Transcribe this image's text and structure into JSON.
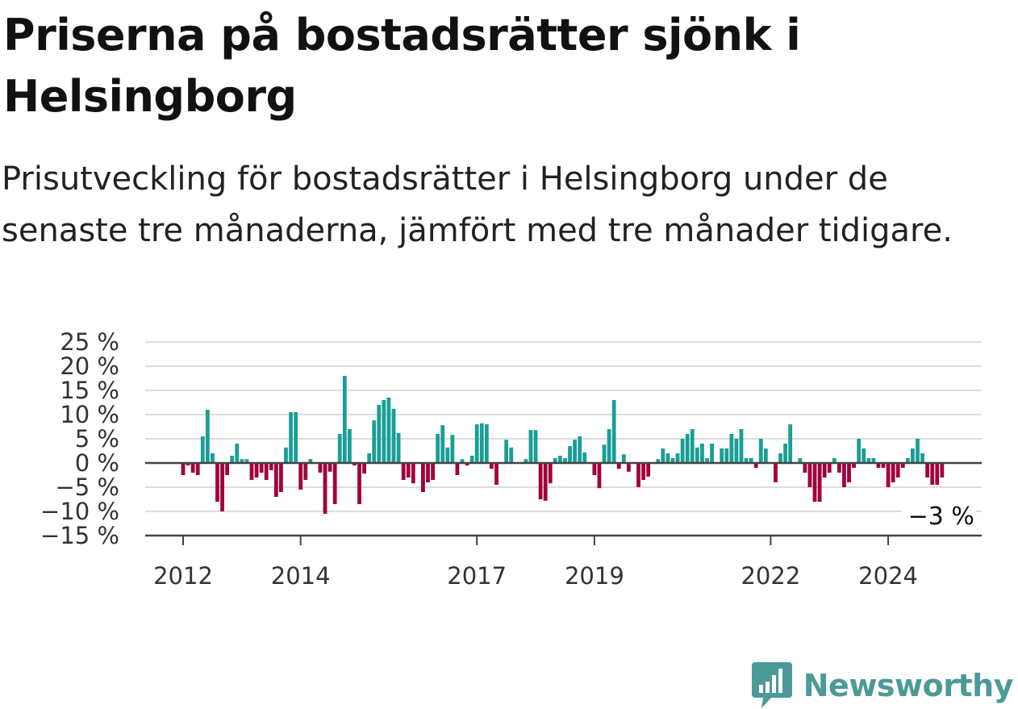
{
  "title": "Priserna på bostadsrätter sjönk i Helsingborg",
  "subtitle": "Prisutveckling för bostadsrätter i Helsingborg under de senaste tre månaderna, jämfört med tre månader tidigare.",
  "brand": {
    "name": "Newsworthy",
    "icon": "newsworthy-logo-icon"
  },
  "colors": {
    "positive": "#1a9e96",
    "negative": "#a1003d",
    "grid": "#dddddd",
    "axis": "#444444"
  },
  "chart_data": {
    "type": "bar",
    "title": "Priserna på bostadsrätter sjönk i Helsingborg",
    "ylabel": "",
    "xlabel": "",
    "unit": "%",
    "ylim": [
      -15,
      25
    ],
    "y_ticks": [
      25,
      20,
      15,
      10,
      5,
      0,
      -5,
      -10,
      -15
    ],
    "y_tick_labels": [
      "25 %",
      "20 %",
      "15 %",
      "10 %",
      "5 %",
      "0 %",
      "−5 %",
      "−10 %",
      "−15 %"
    ],
    "x_ticks": [
      "2012",
      "2014",
      "2017",
      "2019",
      "2022",
      "2024"
    ],
    "start": "2012-01",
    "frequency": "monthly",
    "grid": true,
    "last_value_label": "−3 %",
    "values": [
      -2.5,
      -0.5,
      -2,
      -2.5,
      5.5,
      11,
      2,
      -8,
      -10,
      -2.5,
      1.5,
      4,
      0.8,
      0.8,
      -3.5,
      -3,
      -2,
      -3.5,
      -1.5,
      -7,
      -6,
      3.2,
      10.5,
      10.5,
      -5.5,
      -3.5,
      0.8,
      0,
      -2,
      -10.5,
      -1.8,
      -8.5,
      6,
      18,
      7,
      -0.5,
      -8.5,
      -2.2,
      2,
      8.8,
      12,
      13,
      13.5,
      11.2,
      6.2,
      -3.5,
      -3,
      -4.2,
      0,
      -6,
      -4,
      -3.5,
      6,
      7.8,
      3.2,
      5.8,
      -2.5,
      0.8,
      -0.5,
      1.5,
      8,
      8.2,
      8,
      -1.2,
      -4.5,
      0,
      4.8,
      3.2,
      0,
      0,
      0.8,
      6.8,
      6.8,
      -7.5,
      -7.8,
      -4.2,
      1,
      1.5,
      1,
      3.5,
      4.8,
      5.5,
      2.2,
      0,
      -2.5,
      -5.2,
      3.8,
      7,
      13,
      -1.2,
      1.8,
      -1.8,
      0,
      -5,
      -3.5,
      -2.8,
      0,
      0.8,
      3,
      2,
      1,
      2,
      5,
      6,
      7,
      3.2,
      4,
      1,
      4,
      0,
      3,
      3,
      6,
      5,
      7,
      1,
      1,
      -1,
      5,
      3,
      0,
      -4,
      2,
      4,
      8,
      0,
      1,
      -2,
      -5,
      -8,
      -8,
      -3,
      -2,
      1,
      -2,
      -5,
      -4,
      -1,
      5,
      3,
      1,
      1,
      -1,
      -1,
      -5,
      -4,
      -3,
      -1,
      1,
      3,
      5,
      2,
      -3,
      -4.5,
      -4.5,
      -3
    ]
  }
}
